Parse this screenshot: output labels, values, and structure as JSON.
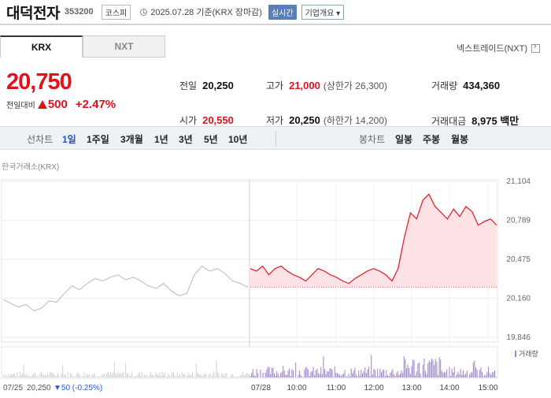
{
  "header": {
    "name": "대덕전자",
    "code": "353200",
    "market": "코스피",
    "date": "2025.07.28 기준(KRX 장마감)",
    "realtime": "실시간",
    "company": "기업개요 ▾"
  },
  "tabs": [
    {
      "label": "KRX"
    },
    {
      "label": "NXT"
    }
  ],
  "nxt_link": "넥스트레이드(NXT)",
  "quote": {
    "price": "20,750",
    "change_label": "전일대비",
    "change": "500",
    "change_pct": "+2.47%"
  },
  "stats": {
    "prev_label": "전일",
    "prev": "20,250",
    "high_label": "고가",
    "high": "21,000",
    "upper": "(상한가 26,300)",
    "volume_label": "거래량",
    "volume": "434,360",
    "open_label": "시가",
    "open": "20,550",
    "low_label": "저가",
    "low": "20,250",
    "lower": "(하한가 14,200)",
    "amount_label": "거래대금",
    "amount": "8,975 백만"
  },
  "period": {
    "line_label": "선차트",
    "line_items": [
      "1일",
      "1주일",
      "3개월",
      "1년",
      "3년",
      "5년",
      "10년"
    ],
    "candle_label": "봉차트",
    "candle_items": [
      "일봉",
      "주봉",
      "월봉"
    ]
  },
  "source": "한국거래소(KRX)",
  "footer": {
    "prev_date": "07/25",
    "prev_close": "20,250",
    "prev_change": "▼50 (-0.25%)",
    "vol_legend": "거래량"
  },
  "chart_data": {
    "type": "line",
    "y_ticks": [
      "21,104",
      "20,789",
      "20,475",
      "20,160",
      "19,846"
    ],
    "ylim": [
      19846,
      21104
    ],
    "x_ticks": [
      "07/28",
      "10:00",
      "11:00",
      "12:00",
      "13:00",
      "14:00",
      "15:00"
    ],
    "prev_day_series": [
      20150,
      20120,
      20090,
      20110,
      20060,
      20080,
      20140,
      20130,
      20200,
      20260,
      20230,
      20280,
      20320,
      20300,
      20330,
      20350,
      20310,
      20330,
      20300,
      20260,
      20240,
      20280,
      20220,
      20180,
      20200,
      20350,
      20420,
      20380,
      20400,
      20360,
      20300,
      20280,
      20250
    ],
    "today_series": [
      20400,
      20380,
      20420,
      20350,
      20400,
      20420,
      20380,
      20350,
      20330,
      20300,
      20350,
      20400,
      20380,
      20350,
      20330,
      20300,
      20280,
      20320,
      20350,
      20380,
      20400,
      20380,
      20350,
      20300,
      20400,
      20650,
      20850,
      20800,
      20950,
      21000,
      20900,
      20850,
      20800,
      20880,
      20820,
      20900,
      20860,
      20750,
      20780,
      20800,
      20750
    ],
    "base_price": 20250,
    "volume_legend": "거래량"
  }
}
